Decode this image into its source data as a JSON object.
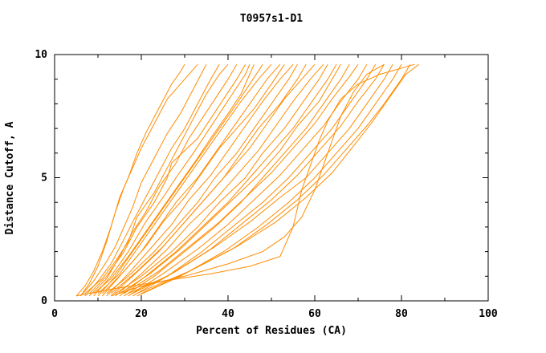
{
  "chart_data": {
    "type": "line",
    "title": "T0957s1-D1",
    "xlabel": "Percent of Residues (CA)",
    "ylabel": "Distance Cutoff, A",
    "xlim": [
      0,
      100
    ],
    "ylim": [
      0,
      10
    ],
    "x_major_ticks": [
      0,
      20,
      40,
      60,
      80,
      100
    ],
    "x_minor_ticks": [
      10,
      30,
      50,
      70,
      90
    ],
    "y_major_ticks": [
      0,
      5,
      10
    ],
    "y_minor_ticks": [
      1,
      2,
      3,
      4,
      6,
      7,
      8,
      9
    ],
    "grid": false,
    "legend": "none",
    "curve_color": "#ff8c00",
    "axis_color": "#000000",
    "series": [
      [
        [
          5,
          0.2
        ],
        [
          7,
          0.6
        ],
        [
          9,
          1.2
        ],
        [
          11,
          2.0
        ],
        [
          13,
          3.0
        ],
        [
          15,
          4.2
        ],
        [
          17,
          5.0
        ],
        [
          19,
          6.0
        ],
        [
          21,
          6.8
        ],
        [
          24,
          7.8
        ],
        [
          27,
          8.8
        ],
        [
          29,
          9.3
        ],
        [
          30,
          9.6
        ]
      ],
      [
        [
          6,
          0.2
        ],
        [
          8,
          0.7
        ],
        [
          10,
          1.4
        ],
        [
          12,
          2.4
        ],
        [
          14,
          3.6
        ],
        [
          16,
          4.6
        ],
        [
          18,
          5.4
        ],
        [
          20,
          6.2
        ],
        [
          23,
          7.2
        ],
        [
          26,
          8.2
        ],
        [
          30,
          9.0
        ],
        [
          33,
          9.6
        ]
      ],
      [
        [
          6,
          0.2
        ],
        [
          9,
          0.8
        ],
        [
          12,
          1.6
        ],
        [
          14,
          2.2
        ],
        [
          16,
          3.0
        ],
        [
          18,
          3.8
        ],
        [
          20,
          4.8
        ],
        [
          23,
          5.8
        ],
        [
          26,
          6.8
        ],
        [
          29,
          7.6
        ],
        [
          32,
          8.6
        ],
        [
          35,
          9.6
        ]
      ],
      [
        [
          7,
          0.2
        ],
        [
          10,
          0.8
        ],
        [
          13,
          1.5
        ],
        [
          16,
          2.5
        ],
        [
          18,
          3.2
        ],
        [
          21,
          4.2
        ],
        [
          24,
          5.2
        ],
        [
          27,
          6.2
        ],
        [
          30,
          7.0
        ],
        [
          33,
          8.0
        ],
        [
          36,
          9.0
        ],
        [
          38,
          9.6
        ]
      ],
      [
        [
          7,
          0.3
        ],
        [
          11,
          0.9
        ],
        [
          14,
          1.6
        ],
        [
          17,
          2.4
        ],
        [
          19,
          3.4
        ],
        [
          23,
          4.4
        ],
        [
          26,
          5.4
        ],
        [
          29,
          6.4
        ],
        [
          32,
          7.4
        ],
        [
          35,
          8.4
        ],
        [
          38,
          9.2
        ],
        [
          40,
          9.6
        ]
      ],
      [
        [
          8,
          0.2
        ],
        [
          12,
          0.9
        ],
        [
          15,
          1.8
        ],
        [
          18,
          2.8
        ],
        [
          21,
          3.6
        ],
        [
          24,
          4.6
        ],
        [
          28,
          5.6
        ],
        [
          31,
          6.6
        ],
        [
          34,
          7.4
        ],
        [
          37,
          8.2
        ],
        [
          40,
          9.0
        ],
        [
          42,
          9.6
        ]
      ],
      [
        [
          8,
          0.3
        ],
        [
          12,
          1.0
        ],
        [
          16,
          2.0
        ],
        [
          19,
          3.0
        ],
        [
          23,
          4.0
        ],
        [
          26,
          5.0
        ],
        [
          27,
          5.6
        ],
        [
          33,
          6.6
        ],
        [
          36,
          7.4
        ],
        [
          39,
          8.2
        ],
        [
          42,
          9.0
        ],
        [
          44,
          9.6
        ]
      ],
      [
        [
          9,
          0.2
        ],
        [
          13,
          1.0
        ],
        [
          17,
          2.0
        ],
        [
          21,
          3.2
        ],
        [
          25,
          4.2
        ],
        [
          28,
          5.0
        ],
        [
          32,
          6.0
        ],
        [
          35,
          6.8
        ],
        [
          38,
          7.6
        ],
        [
          41,
          8.4
        ],
        [
          44,
          9.2
        ],
        [
          45,
          9.6
        ]
      ],
      [
        [
          9,
          0.3
        ],
        [
          13,
          0.9
        ],
        [
          17,
          1.8
        ],
        [
          21,
          2.8
        ],
        [
          25,
          3.8
        ],
        [
          29,
          4.8
        ],
        [
          33,
          5.8
        ],
        [
          36,
          6.6
        ],
        [
          40,
          7.6
        ],
        [
          43,
          8.4
        ],
        [
          46,
          9.6
        ]
      ],
      [
        [
          10,
          0.2
        ],
        [
          14,
          1.0
        ],
        [
          18,
          2.0
        ],
        [
          22,
          3.0
        ],
        [
          26,
          4.0
        ],
        [
          30,
          5.0
        ],
        [
          34,
          6.0
        ],
        [
          38,
          7.0
        ],
        [
          42,
          8.0
        ],
        [
          45,
          8.8
        ],
        [
          48,
          9.6
        ]
      ],
      [
        [
          10,
          0.3
        ],
        [
          15,
          1.1
        ],
        [
          19,
          2.1
        ],
        [
          23,
          3.1
        ],
        [
          27,
          4.1
        ],
        [
          31,
          5.1
        ],
        [
          35,
          6.1
        ],
        [
          39,
          7.1
        ],
        [
          43,
          8.1
        ],
        [
          47,
          9.0
        ],
        [
          50,
          9.6
        ]
      ],
      [
        [
          11,
          0.2
        ],
        [
          15,
          1.0
        ],
        [
          20,
          2.0
        ],
        [
          24,
          3.0
        ],
        [
          28,
          4.0
        ],
        [
          33,
          5.0
        ],
        [
          37,
          6.0
        ],
        [
          41,
          7.0
        ],
        [
          45,
          8.0
        ],
        [
          49,
          9.0
        ],
        [
          52,
          9.6
        ]
      ],
      [
        [
          11,
          0.3
        ],
        [
          16,
          1.2
        ],
        [
          21,
          2.2
        ],
        [
          25,
          3.2
        ],
        [
          30,
          4.2
        ],
        [
          34,
          5.2
        ],
        [
          38,
          6.2
        ],
        [
          42,
          7.0
        ],
        [
          46,
          7.8
        ],
        [
          50,
          8.8
        ],
        [
          53,
          9.6
        ]
      ],
      [
        [
          12,
          0.2
        ],
        [
          17,
          1.1
        ],
        [
          22,
          2.1
        ],
        [
          27,
          3.1
        ],
        [
          31,
          4.1
        ],
        [
          36,
          5.1
        ],
        [
          40,
          6.1
        ],
        [
          44,
          7.1
        ],
        [
          48,
          8.1
        ],
        [
          52,
          9.0
        ],
        [
          55,
          9.6
        ]
      ],
      [
        [
          12,
          0.3
        ],
        [
          17,
          1.0
        ],
        [
          23,
          2.0
        ],
        [
          28,
          3.0
        ],
        [
          33,
          4.0
        ],
        [
          37,
          5.0
        ],
        [
          42,
          6.0
        ],
        [
          46,
          7.0
        ],
        [
          50,
          8.0
        ],
        [
          54,
          9.0
        ],
        [
          56,
          9.6
        ]
      ],
      [
        [
          13,
          0.2
        ],
        [
          18,
          1.0
        ],
        [
          24,
          2.0
        ],
        [
          29,
          3.0
        ],
        [
          34,
          4.0
        ],
        [
          39,
          5.0
        ],
        [
          43,
          6.0
        ],
        [
          47,
          7.0
        ],
        [
          52,
          8.0
        ],
        [
          56,
          9.0
        ],
        [
          58,
          9.6
        ]
      ],
      [
        [
          13,
          0.3
        ],
        [
          19,
          1.2
        ],
        [
          25,
          2.2
        ],
        [
          30,
          3.2
        ],
        [
          35,
          4.2
        ],
        [
          40,
          5.2
        ],
        [
          45,
          6.2
        ],
        [
          49,
          7.2
        ],
        [
          53,
          8.2
        ],
        [
          57,
          9.0
        ],
        [
          60,
          9.6
        ]
      ],
      [
        [
          14,
          0.2
        ],
        [
          20,
          1.1
        ],
        [
          26,
          2.1
        ],
        [
          31,
          3.1
        ],
        [
          37,
          4.1
        ],
        [
          42,
          5.1
        ],
        [
          47,
          6.1
        ],
        [
          51,
          7.1
        ],
        [
          55,
          8.1
        ],
        [
          59,
          9.0
        ],
        [
          62,
          9.6
        ]
      ],
      [
        [
          14,
          0.3
        ],
        [
          20,
          1.0
        ],
        [
          27,
          2.0
        ],
        [
          33,
          3.0
        ],
        [
          38,
          4.0
        ],
        [
          44,
          5.0
        ],
        [
          48,
          6.0
        ],
        [
          53,
          7.0
        ],
        [
          57,
          8.0
        ],
        [
          61,
          9.0
        ],
        [
          63,
          9.6
        ]
      ],
      [
        [
          15,
          0.2
        ],
        [
          21,
          1.0
        ],
        [
          28,
          2.0
        ],
        [
          34,
          3.0
        ],
        [
          40,
          4.0
        ],
        [
          45,
          5.0
        ],
        [
          50,
          6.0
        ],
        [
          55,
          7.0
        ],
        [
          59,
          8.0
        ],
        [
          63,
          9.0
        ],
        [
          65,
          9.6
        ]
      ],
      [
        [
          15,
          0.3
        ],
        [
          22,
          1.1
        ],
        [
          29,
          2.1
        ],
        [
          35,
          3.1
        ],
        [
          41,
          4.1
        ],
        [
          47,
          5.1
        ],
        [
          52,
          6.1
        ],
        [
          56,
          7.1
        ],
        [
          61,
          8.1
        ],
        [
          64,
          9.0
        ],
        [
          66,
          9.6
        ]
      ],
      [
        [
          16,
          0.2
        ],
        [
          23,
          1.0
        ],
        [
          30,
          2.0
        ],
        [
          37,
          3.0
        ],
        [
          43,
          4.0
        ],
        [
          48,
          5.0
        ],
        [
          53,
          6.0
        ],
        [
          58,
          7.0
        ],
        [
          62,
          8.0
        ],
        [
          66,
          9.0
        ],
        [
          68,
          9.6
        ]
      ],
      [
        [
          16,
          0.3
        ],
        [
          24,
          1.2
        ],
        [
          31,
          2.2
        ],
        [
          38,
          3.2
        ],
        [
          44,
          4.2
        ],
        [
          50,
          5.2
        ],
        [
          55,
          6.2
        ],
        [
          60,
          7.2
        ],
        [
          64,
          8.2
        ],
        [
          68,
          9.1
        ],
        [
          70,
          9.6
        ]
      ],
      [
        [
          17,
          0.2
        ],
        [
          25,
          1.1
        ],
        [
          33,
          2.1
        ],
        [
          40,
          3.1
        ],
        [
          46,
          4.1
        ],
        [
          52,
          5.1
        ],
        [
          57,
          6.1
        ],
        [
          62,
          7.1
        ],
        [
          66,
          8.1
        ],
        [
          70,
          9.0
        ],
        [
          72,
          9.6
        ]
      ],
      [
        [
          17,
          0.3
        ],
        [
          26,
          1.0
        ],
        [
          34,
          2.0
        ],
        [
          41,
          3.0
        ],
        [
          48,
          4.0
        ],
        [
          54,
          5.0
        ],
        [
          59,
          6.0
        ],
        [
          64,
          7.0
        ],
        [
          68,
          8.0
        ],
        [
          72,
          9.0
        ],
        [
          74,
          9.6
        ]
      ],
      [
        [
          18,
          0.2
        ],
        [
          27,
          1.1
        ],
        [
          36,
          2.1
        ],
        [
          43,
          3.1
        ],
        [
          50,
          4.1
        ],
        [
          56,
          5.1
        ],
        [
          61,
          6.1
        ],
        [
          66,
          7.1
        ],
        [
          70,
          8.1
        ],
        [
          74,
          9.0
        ],
        [
          76,
          9.6
        ]
      ],
      [
        [
          18,
          0.3
        ],
        [
          28,
          1.2
        ],
        [
          37,
          2.2
        ],
        [
          45,
          3.2
        ],
        [
          52,
          4.2
        ],
        [
          58,
          5.0
        ],
        [
          63,
          6.0
        ],
        [
          68,
          7.0
        ],
        [
          72,
          8.0
        ],
        [
          76,
          9.0
        ],
        [
          78,
          9.6
        ]
      ],
      [
        [
          19,
          0.2
        ],
        [
          29,
          1.0
        ],
        [
          39,
          2.0
        ],
        [
          47,
          3.0
        ],
        [
          54,
          4.0
        ],
        [
          60,
          5.0
        ],
        [
          65,
          6.0
        ],
        [
          70,
          7.0
        ],
        [
          74,
          8.0
        ],
        [
          78,
          9.0
        ],
        [
          80,
          9.6
        ]
      ],
      [
        [
          20,
          0.3
        ],
        [
          30,
          1.1
        ],
        [
          41,
          2.1
        ],
        [
          49,
          3.1
        ],
        [
          56,
          4.1
        ],
        [
          62,
          5.1
        ],
        [
          67,
          6.1
        ],
        [
          72,
          7.1
        ],
        [
          76,
          8.0
        ],
        [
          80,
          9.0
        ],
        [
          82,
          9.6
        ]
      ],
      [
        [
          5,
          0.2
        ],
        [
          14,
          0.5
        ],
        [
          25,
          0.8
        ],
        [
          36,
          1.1
        ],
        [
          45,
          1.4
        ],
        [
          52,
          1.8
        ],
        [
          55,
          3.0
        ],
        [
          57,
          4.5
        ],
        [
          59,
          5.5
        ],
        [
          61,
          6.5
        ],
        [
          63,
          7.3
        ],
        [
          66,
          8.2
        ],
        [
          70,
          8.8
        ],
        [
          75,
          9.2
        ],
        [
          83,
          9.6
        ]
      ],
      [
        [
          13,
          0.2
        ],
        [
          20,
          0.6
        ],
        [
          30,
          1.0
        ],
        [
          40,
          1.5
        ],
        [
          48,
          2.0
        ],
        [
          53,
          2.6
        ],
        [
          57,
          3.4
        ],
        [
          60,
          4.5
        ],
        [
          62,
          5.5
        ],
        [
          64,
          6.5
        ],
        [
          66,
          7.5
        ],
        [
          69,
          8.5
        ],
        [
          72,
          9.2
        ],
        [
          76,
          9.6
        ]
      ],
      [
        [
          19,
          0.3
        ],
        [
          31,
          1.2
        ],
        [
          42,
          2.2
        ],
        [
          51,
          3.2
        ],
        [
          58,
          4.2
        ],
        [
          64,
          5.2
        ],
        [
          69,
          6.3
        ],
        [
          73,
          7.2
        ],
        [
          77,
          8.2
        ],
        [
          81,
          9.2
        ],
        [
          84,
          9.6
        ]
      ]
    ]
  }
}
